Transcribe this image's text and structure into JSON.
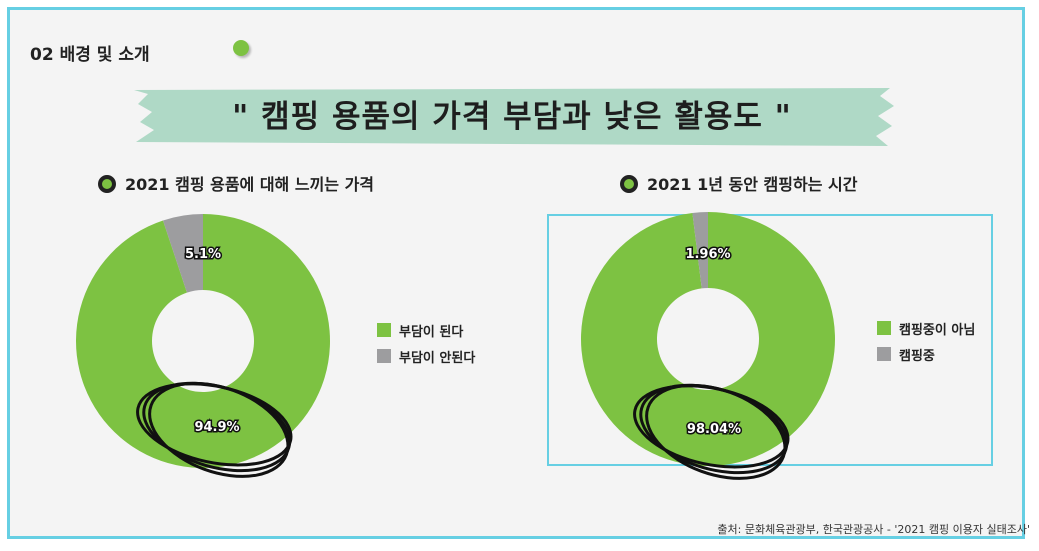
{
  "section_label": "02 배경 및 소개",
  "banner_title": "\" 캠핑 용품의 가격 부담과 낮은 활용도 \"",
  "source": "출처: 문화체육관광부, 한국관광공사 - '2021 캠핑 이용자 실태조사'",
  "colors": {
    "green": "#7dc242",
    "gray": "#9d9d9f",
    "accent_border": "#66cfe3",
    "banner": "#afd9c6"
  },
  "chart_data": [
    {
      "type": "pie",
      "title": "2021 캠핑 용품에 대해 느끼는 가격",
      "donut": true,
      "slices": [
        {
          "label": "부담이 된다",
          "value": 94.9,
          "display": "94.9%",
          "color": "#7dc242"
        },
        {
          "label": "부담이 안된다",
          "value": 5.1,
          "display": "5.1%",
          "color": "#9d9d9f"
        }
      ],
      "legend_position": "right"
    },
    {
      "type": "pie",
      "title": "2021 1년 동안 캠핑하는 시간",
      "donut": true,
      "slices": [
        {
          "label": "캠핑중이 아님",
          "value": 98.04,
          "display": "98.04%",
          "color": "#7dc242"
        },
        {
          "label": "캠핑중",
          "value": 1.96,
          "display": "1.96%",
          "color": "#9d9d9f"
        }
      ],
      "legend_position": "right"
    }
  ]
}
